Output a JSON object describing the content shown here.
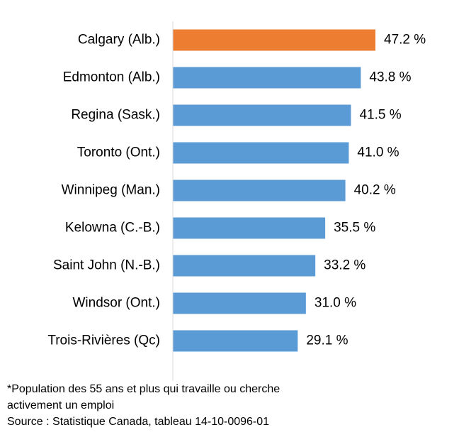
{
  "chart_data": {
    "type": "bar",
    "orientation": "horizontal",
    "categories": [
      "Calgary (Alb.)",
      "Edmonton (Alb.)",
      "Regina (Sask.)",
      "Toronto (Ont.)",
      "Winnipeg (Man.)",
      "Kelowna (C.-B.)",
      "Saint John (N.-B.)",
      "Windsor (Ont.)",
      "Trois-Rivières (Qc)"
    ],
    "values": [
      47.2,
      43.8,
      41.5,
      41.0,
      40.2,
      35.5,
      33.2,
      31.0,
      29.1
    ],
    "value_labels": [
      "47.2 %",
      "43.8 %",
      "41.5 %",
      "41.0 %",
      "40.2 %",
      "35.5 %",
      "33.2 %",
      "31.0 %",
      "29.1 %"
    ],
    "colors": [
      "#ed7d31",
      "#5b9bd5",
      "#5b9bd5",
      "#5b9bd5",
      "#5b9bd5",
      "#5b9bd5",
      "#5b9bd5",
      "#5b9bd5",
      "#5b9bd5"
    ],
    "notes": [
      "*Population des 55 ans et plus qui travaille ou cherche",
      "activement un emploi",
      "Source : Statistique Canada, tableau 14-10-0096-01"
    ]
  }
}
